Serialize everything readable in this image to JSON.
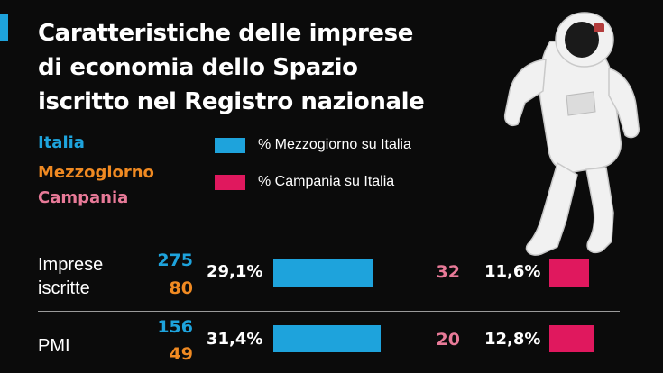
{
  "chart_data": {
    "type": "bar",
    "title": "Caratteristiche delle imprese di economia dello Spazio iscritto nel Registro nazionale",
    "title_lines": [
      "Caratteristiche delle imprese",
      "di economia dello Spazio",
      "iscritto nel Registro nazionale"
    ],
    "region_keys": [
      "Italia",
      "Mezzogiorno",
      "Campania"
    ],
    "region_colors": {
      "Italia": "#1ea3dc",
      "Mezzogiorno": "#f08a22",
      "Campania": "#e87a98"
    },
    "legend": [
      {
        "label": "% Mezzogiorno su Italia",
        "color": "#1ea3dc"
      },
      {
        "label": "% Campania su Italia",
        "color": "#e0185e"
      }
    ],
    "rows": [
      {
        "label_lines": [
          "Imprese",
          "iscritte"
        ],
        "italia": "275",
        "mezzogiorno": "80",
        "campania": "32",
        "pct_mezzogiorno": 29.1,
        "pct_mezzogiorno_label": "29,1%",
        "pct_campania": 11.6,
        "pct_campania_label": "11,6%"
      },
      {
        "label_lines": [
          "PMI"
        ],
        "italia": "156",
        "mezzogiorno": "49",
        "campania": "20",
        "pct_mezzogiorno": 31.4,
        "pct_mezzogiorno_label": "31,4%",
        "pct_campania": 12.8,
        "pct_campania_label": "12,8%"
      }
    ]
  }
}
